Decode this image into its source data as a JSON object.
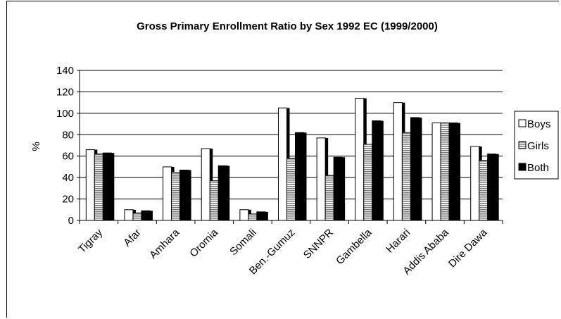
{
  "chart_data": {
    "type": "bar",
    "title": "Gross Primary Enrollment Ratio by Sex 1992 EC (1999/2000)",
    "xlabel": "",
    "ylabel": "%",
    "ylim": [
      0,
      140
    ],
    "yticks": [
      0,
      20,
      40,
      60,
      80,
      100,
      120,
      140
    ],
    "grid": true,
    "legend_position": "right",
    "categories": [
      "Tigray",
      "Afar",
      "Amhara",
      "Oromia",
      "Somali",
      "Ben.-Gumuz",
      "SNNPR",
      "Gambella",
      "Harari",
      "Addis Ababa",
      "Dire Dawa"
    ],
    "series": [
      {
        "name": "Boys",
        "values": [
          66,
          10,
          50,
          67,
          10,
          105,
          77,
          114,
          110,
          91,
          69
        ],
        "fill": "#ffffff",
        "pattern": "solid"
      },
      {
        "name": "Girls",
        "values": [
          62,
          7,
          45,
          37,
          6,
          58,
          42,
          71,
          82,
          91,
          56
        ],
        "fill": "#9a9a9a",
        "pattern": "horizontal-stripes"
      },
      {
        "name": "Both",
        "values": [
          63,
          9,
          47,
          51,
          8,
          82,
          59,
          93,
          96,
          91,
          62
        ],
        "fill": "#000000",
        "pattern": "solid"
      }
    ]
  }
}
